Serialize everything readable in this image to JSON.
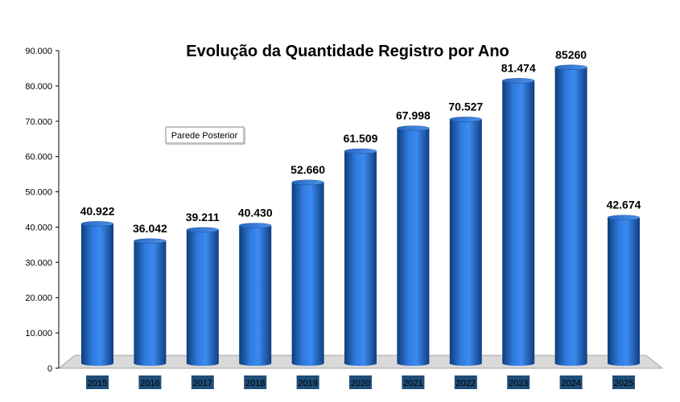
{
  "chart_data": {
    "type": "bar",
    "style": "3d-cylinder",
    "title": "Evolução da Quantidade Registro por Ano",
    "xlabel": "",
    "ylabel": "",
    "categories": [
      "2015",
      "2016",
      "2017",
      "2018",
      "2019",
      "2020",
      "2021",
      "2022",
      "2023",
      "2024",
      "2025"
    ],
    "values": [
      40922,
      36042,
      39211,
      40430,
      52660,
      61509,
      67998,
      70527,
      81474,
      85260,
      42674
    ],
    "data_labels": [
      "40.922",
      "36.042",
      "39.211",
      "40.430",
      "52.660",
      "61.509",
      "67.998",
      "70.527",
      "81.474",
      "85260",
      "42.674"
    ],
    "ylim": [
      0,
      90000
    ],
    "y_ticks": [
      0,
      10000,
      20000,
      30000,
      40000,
      50000,
      60000,
      70000,
      80000,
      90000
    ],
    "y_tick_labels": [
      "0",
      "10.000",
      "20.000",
      "30.000",
      "40.000",
      "50.000",
      "60.000",
      "70.000",
      "80.000",
      "90.000"
    ],
    "grid": false,
    "legend": "none",
    "bar_color": "#2a6ccf",
    "category_label_bg": "#1f4e79"
  },
  "tooltip": {
    "text": "Parede Posterior"
  }
}
